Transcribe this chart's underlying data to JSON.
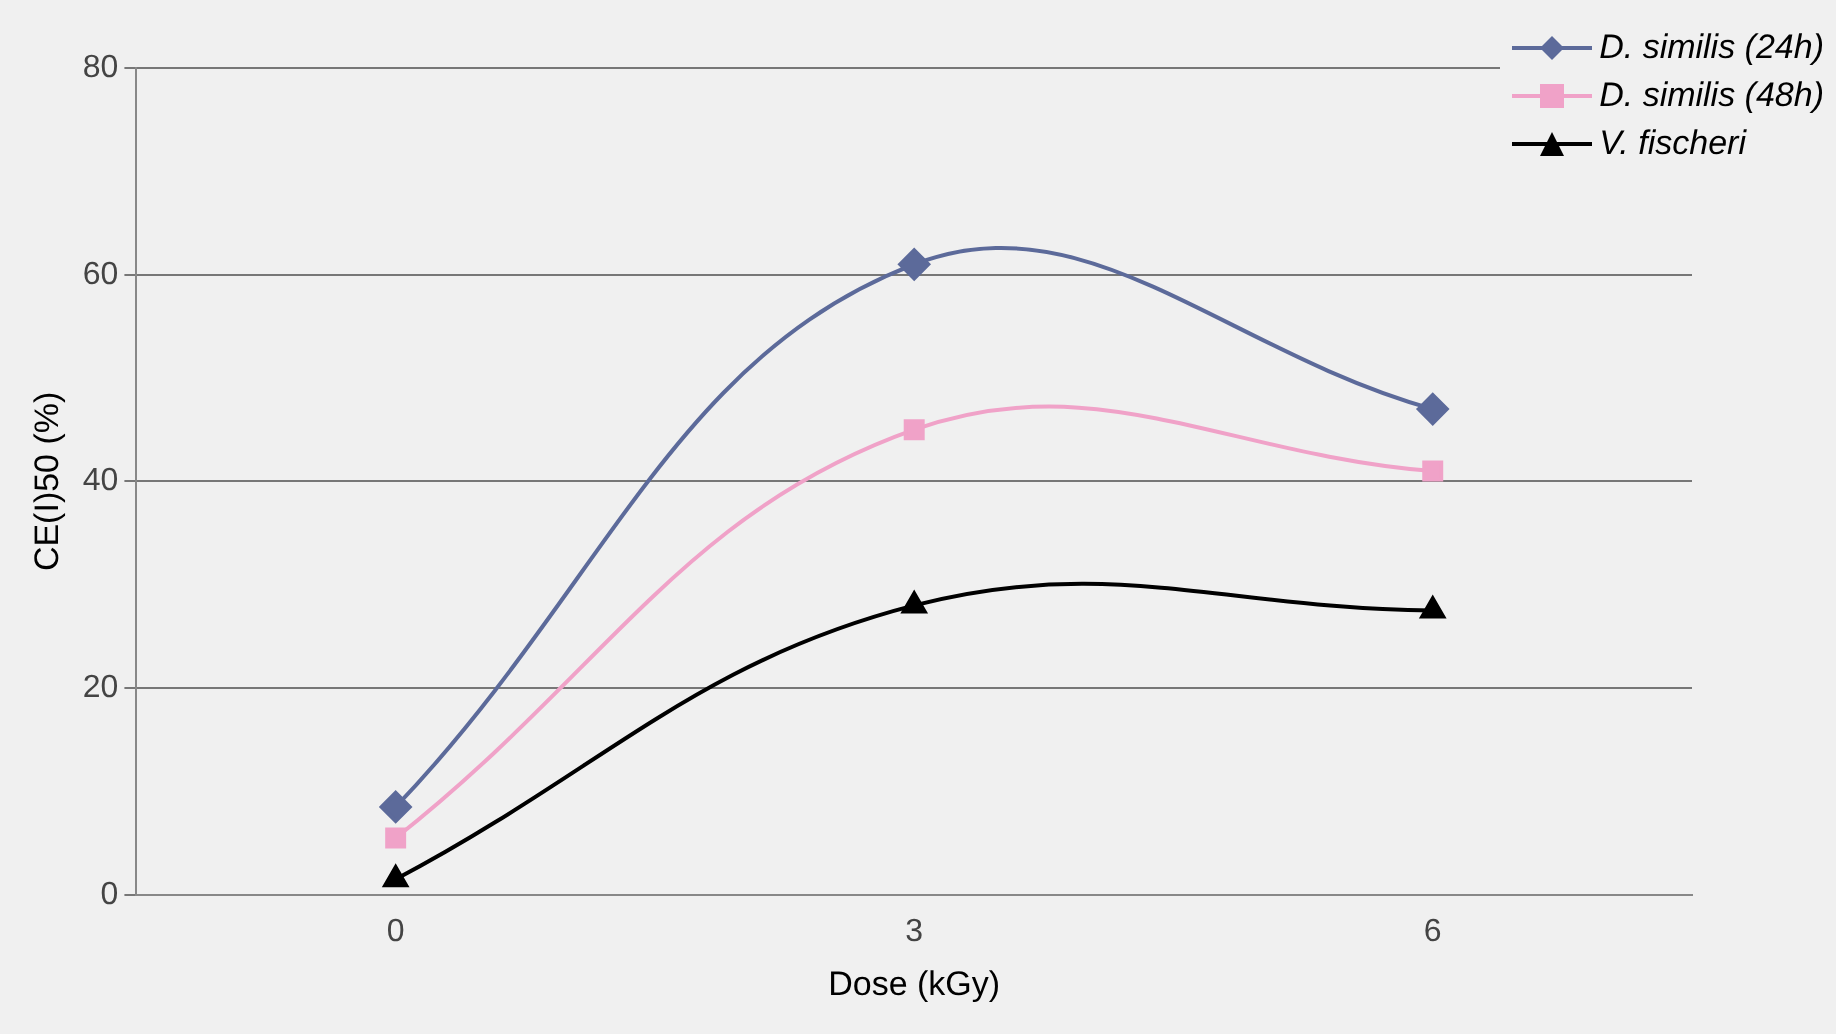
{
  "chart_data": {
    "type": "line",
    "xlabel": "Dose (kGy)",
    "ylabel": "CE(I)50 (%)",
    "categories": [
      "0",
      "3",
      "6"
    ],
    "series": [
      {
        "name": "D. similis (24h)",
        "color": "#5c6a9a",
        "values": [
          8.5,
          61,
          47
        ],
        "marker": "diamond"
      },
      {
        "name": "D. similis (48h)",
        "color": "#f0a2c8",
        "values": [
          5.5,
          45,
          41
        ],
        "marker": "square"
      },
      {
        "name": "V. fischeri",
        "color": "#000000",
        "values": [
          1.5,
          28,
          27.5
        ],
        "marker": "triangle"
      }
    ],
    "ylim": [
      0,
      80
    ],
    "yticks": [
      0,
      20,
      40,
      60,
      80
    ],
    "grid": "y",
    "legend": "top right"
  }
}
